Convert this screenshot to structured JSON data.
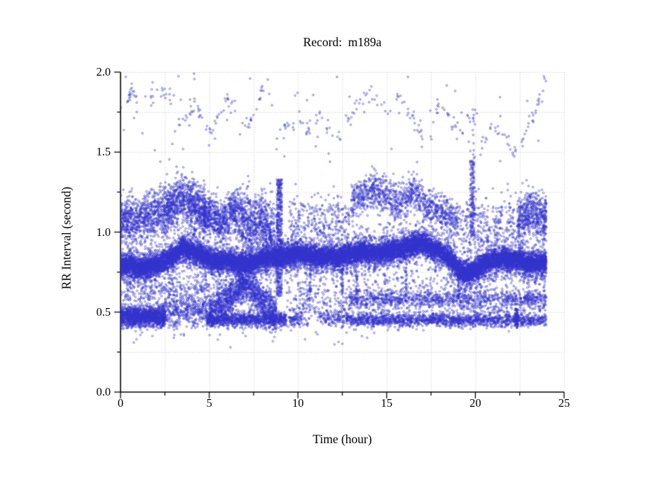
{
  "page": {
    "background_color": "#ffffff",
    "description": "Scatter plot of RR interval versus time for ECG record m189a"
  },
  "chart_data": {
    "type": "scatter",
    "title": "Record:  m189a",
    "xlabel": "Time (hour)",
    "ylabel": "RR Interval (second)",
    "xlim": [
      0,
      25
    ],
    "ylim": [
      0.0,
      2.0
    ],
    "x_major_ticks": [
      0,
      5,
      10,
      15,
      20,
      25
    ],
    "x_major_labels": [
      "0",
      "5",
      "10",
      "15",
      "20",
      "25"
    ],
    "x_minor_ticks": [
      2.5,
      7.5,
      12.5,
      17.5,
      22.5
    ],
    "y_major_ticks": [
      0.0,
      0.5,
      1.0,
      1.5,
      2.0
    ],
    "y_major_labels": [
      "0.0",
      "0.5",
      "1.0",
      "1.5",
      "2.0"
    ],
    "y_minor_ticks": [
      0.25,
      0.75,
      1.25,
      1.75
    ],
    "grid": {
      "style": "dotted",
      "color": "#b5b5b5",
      "at": "all major and minor ticks"
    },
    "axis_color": "#000000",
    "marker": {
      "shape": "open-circle",
      "color": "#3232cd",
      "radius_px": 1.25
    },
    "seed": 20189,
    "data_end_hour": 24,
    "centerlines": {
      "main": [
        [
          0,
          0.78
        ],
        [
          0.5,
          0.8
        ],
        [
          1,
          0.77
        ],
        [
          1.5,
          0.79
        ],
        [
          2,
          0.79
        ],
        [
          2.5,
          0.82
        ],
        [
          3,
          0.85
        ],
        [
          3.5,
          0.9
        ],
        [
          4,
          0.88
        ],
        [
          4.5,
          0.86
        ],
        [
          5,
          0.83
        ],
        [
          5.5,
          0.81
        ],
        [
          6,
          0.82
        ],
        [
          6.5,
          0.81
        ],
        [
          7,
          0.8
        ],
        [
          7.5,
          0.81
        ],
        [
          8,
          0.83
        ],
        [
          8.5,
          0.84
        ],
        [
          9,
          0.85
        ],
        [
          9.5,
          0.85
        ],
        [
          10,
          0.87
        ],
        [
          10.5,
          0.86
        ],
        [
          11,
          0.85
        ],
        [
          11.5,
          0.85
        ],
        [
          12,
          0.84
        ],
        [
          12.5,
          0.85
        ],
        [
          13,
          0.86
        ],
        [
          13.5,
          0.88
        ],
        [
          14,
          0.87
        ],
        [
          14.5,
          0.87
        ],
        [
          15,
          0.88
        ],
        [
          15.5,
          0.89
        ],
        [
          16,
          0.9
        ],
        [
          16.5,
          0.92
        ],
        [
          17,
          0.93
        ],
        [
          17.5,
          0.9
        ],
        [
          18,
          0.88
        ],
        [
          18.5,
          0.84
        ],
        [
          19,
          0.77
        ],
        [
          19.5,
          0.74
        ],
        [
          20,
          0.76
        ],
        [
          20.5,
          0.8
        ],
        [
          21,
          0.83
        ],
        [
          21.5,
          0.83
        ],
        [
          22,
          0.82
        ],
        [
          22.5,
          0.83
        ],
        [
          23,
          0.8
        ],
        [
          23.5,
          0.81
        ],
        [
          24,
          0.8
        ]
      ]
    },
    "series": [
      {
        "name": "main-band-core",
        "t": [
          0,
          24
        ],
        "count": 13000,
        "spread": 0.032,
        "center": "main"
      },
      {
        "name": "main-band-mid",
        "t": [
          0,
          24
        ],
        "count": 3000,
        "spread": 0.052,
        "center": "main"
      },
      {
        "name": "main-band-fringe",
        "t": [
          0,
          24
        ],
        "count": 2200,
        "spread": 0.085,
        "center": "main"
      },
      {
        "name": "low-floor-early",
        "t": [
          0,
          2.5
        ],
        "count": 1400,
        "spread": 0.032,
        "center": 0.47
      },
      {
        "name": "low-early-b",
        "t": [
          2.5,
          4.9
        ],
        "count": 380,
        "spread": 0.05,
        "center": 0.5
      },
      {
        "name": "mid-scatter-early",
        "t": [
          0,
          5
        ],
        "count": 420,
        "spread": 0.07,
        "center": 0.63
      },
      {
        "name": "low-pyramid",
        "t": [
          5,
          8.8
        ],
        "count": 1500,
        "spread": 0.055,
        "center": [
          [
            5,
            0.5
          ],
          [
            5.7,
            0.55
          ],
          [
            6.3,
            0.61
          ],
          [
            7,
            0.68
          ],
          [
            7.5,
            0.62
          ],
          [
            8.1,
            0.55
          ],
          [
            8.8,
            0.48
          ]
        ]
      },
      {
        "name": "low-floor-night",
        "t": [
          4.9,
          9.35
        ],
        "count": 1000,
        "spread": 0.022,
        "center": 0.455
      },
      {
        "name": "vstreak-h9",
        "t": [
          8.8,
          9.1
        ],
        "count": 420,
        "y": [
          0.6,
          1.33
        ]
      },
      {
        "name": "low-sparse-midday",
        "t": [
          9.35,
          13
        ],
        "count": 280,
        "spread": 0.08,
        "center": 0.55
      },
      {
        "name": "low-floor-h95",
        "t": [
          9.5,
          10.3
        ],
        "count": 70,
        "spread": 0.025,
        "center": 0.46
      },
      {
        "name": "low-streak-h11",
        "t": [
          11.2,
          12.9
        ],
        "count": 120,
        "spread": 0.02,
        "center": 0.465
      },
      {
        "name": "streak-058",
        "t": [
          12.9,
          24
        ],
        "count": 950,
        "spread": 0.025,
        "center": 0.585
      },
      {
        "name": "streak-045",
        "t": [
          12.9,
          24
        ],
        "count": 1500,
        "spread": 0.02,
        "center": 0.45
      },
      {
        "name": "low-scatter-pm1",
        "t": [
          13,
          24
        ],
        "count": 350,
        "spread": 0.04,
        "center": 0.52
      },
      {
        "name": "low-scatter-pm2",
        "t": [
          13,
          24
        ],
        "count": 220,
        "spread": 0.05,
        "center": 0.66
      },
      {
        "name": "vtick-h223",
        "t": [
          22.25,
          22.42
        ],
        "count": 90,
        "y": [
          0.4,
          0.52
        ]
      },
      {
        "name": "upper-early",
        "t": [
          0,
          2.4
        ],
        "count": 750,
        "spread": 0.07,
        "center": [
          [
            0,
            1.08
          ],
          [
            0.8,
            1.07
          ],
          [
            1.6,
            1.1
          ],
          [
            2.4,
            1.12
          ]
        ]
      },
      {
        "name": "upper-h25-48",
        "t": [
          2.4,
          4.8
        ],
        "count": 1000,
        "spread": 0.075,
        "center": [
          [
            2.4,
            1.12
          ],
          [
            3,
            1.18
          ],
          [
            3.4,
            1.22
          ],
          [
            3.8,
            1.18
          ],
          [
            4.2,
            1.15
          ],
          [
            4.8,
            1.12
          ]
        ]
      },
      {
        "name": "upper-h48-65",
        "t": [
          4.7,
          6.5
        ],
        "count": 650,
        "spread": 0.065,
        "center": [
          [
            4.7,
            1.1
          ],
          [
            5.2,
            1.12
          ],
          [
            5.6,
            1.05
          ],
          [
            6,
            1.1
          ],
          [
            6.5,
            1.12
          ]
        ]
      },
      {
        "name": "upper-h65-87",
        "t": [
          6.5,
          8.7
        ],
        "count": 800,
        "spread": 0.09,
        "center": [
          [
            6.5,
            1.1
          ],
          [
            7,
            1.08
          ],
          [
            7.4,
            1.04
          ],
          [
            7.9,
            1.08
          ],
          [
            8.3,
            1.03
          ],
          [
            8.7,
            0.98
          ]
        ]
      },
      {
        "name": "upper-sparse-midday",
        "t": [
          9.5,
          12.9
        ],
        "count": 280,
        "spread": 0.08,
        "center": 1.08
      },
      {
        "name": "upper-pm",
        "t": [
          13,
          19
        ],
        "count": 1100,
        "spread": 0.055,
        "center": [
          [
            13,
            1.18
          ],
          [
            13.6,
            1.24
          ],
          [
            14.3,
            1.27
          ],
          [
            15,
            1.22
          ],
          [
            15.7,
            1.17
          ],
          [
            16.5,
            1.26
          ],
          [
            17.2,
            1.17
          ],
          [
            18,
            1.12
          ],
          [
            19,
            1.07
          ]
        ]
      },
      {
        "name": "upper-h19-22",
        "t": [
          19,
          22.3
        ],
        "count": 300,
        "spread": 0.09,
        "center": 1.04
      },
      {
        "name": "vstreak-h198",
        "t": [
          19.7,
          19.95
        ],
        "count": 160,
        "y": [
          0.95,
          1.45
        ]
      },
      {
        "name": "upper-h224",
        "t": [
          22.35,
          24
        ],
        "count": 550,
        "spread": 0.075,
        "center": [
          [
            22.35,
            1.05
          ],
          [
            23,
            1.12
          ],
          [
            23.5,
            1.1
          ],
          [
            24,
            1.08
          ]
        ]
      },
      {
        "name": "top-arc-1",
        "t": [
          0.1,
          1
        ],
        "count": 22,
        "spread": 0.03,
        "center": [
          [
            0.1,
            1.55
          ],
          [
            0.35,
            1.78
          ],
          [
            0.6,
            1.9
          ],
          [
            1,
            1.82
          ]
        ]
      },
      {
        "name": "top-arc-2",
        "t": [
          1.4,
          2.9
        ],
        "count": 20,
        "spread": 0.03,
        "center": [
          [
            1.4,
            1.82
          ],
          [
            2.1,
            1.9
          ],
          [
            2.9,
            1.84
          ]
        ]
      },
      {
        "name": "top-arc-3",
        "t": [
          2.9,
          4.9
        ],
        "count": 26,
        "spread": 0.03,
        "center": [
          [
            2.9,
            1.62
          ],
          [
            3.5,
            1.7
          ],
          [
            4.2,
            1.79
          ],
          [
            4.9,
            1.66
          ]
        ]
      },
      {
        "name": "top-arc-4",
        "t": [
          5,
          6.5
        ],
        "count": 22,
        "spread": 0.03,
        "center": [
          [
            5,
            1.6
          ],
          [
            5.6,
            1.74
          ],
          [
            6.1,
            1.85
          ],
          [
            6.5,
            1.78
          ]
        ]
      },
      {
        "name": "top-arc-5",
        "t": [
          6.6,
          8.4
        ],
        "count": 22,
        "spread": 0.03,
        "center": [
          [
            6.6,
            1.6
          ],
          [
            7.2,
            1.68
          ],
          [
            7.9,
            1.88
          ],
          [
            8.4,
            1.83
          ]
        ]
      },
      {
        "name": "top-arc-6",
        "t": [
          8.7,
          12.4
        ],
        "count": 40,
        "spread": 0.03,
        "center": [
          [
            8.7,
            1.56
          ],
          [
            9.3,
            1.65
          ],
          [
            10,
            1.69
          ],
          [
            10.6,
            1.62
          ],
          [
            11.2,
            1.71
          ],
          [
            11.8,
            1.66
          ],
          [
            12.4,
            1.6
          ]
        ]
      },
      {
        "name": "top-arc-7",
        "t": [
          12.6,
          15.3
        ],
        "count": 30,
        "spread": 0.03,
        "center": [
          [
            12.6,
            1.7
          ],
          [
            13.3,
            1.78
          ],
          [
            14,
            1.86
          ],
          [
            14.7,
            1.8
          ],
          [
            15.3,
            1.74
          ]
        ]
      },
      {
        "name": "top-arc-8",
        "t": [
          15.5,
          17.2
        ],
        "count": 24,
        "spread": 0.03,
        "center": [
          [
            15.5,
            1.86
          ],
          [
            16,
            1.8
          ],
          [
            16.6,
            1.7
          ],
          [
            17.2,
            1.58
          ]
        ]
      },
      {
        "name": "top-arc-9",
        "t": [
          17.4,
          19.3
        ],
        "count": 24,
        "spread": 0.03,
        "center": [
          [
            17.4,
            1.74
          ],
          [
            18,
            1.8
          ],
          [
            18.7,
            1.7
          ],
          [
            19.3,
            1.62
          ]
        ]
      },
      {
        "name": "top-vcluster-h198",
        "t": [
          19.55,
          20
        ],
        "count": 20,
        "y": [
          1.45,
          1.78
        ]
      },
      {
        "name": "top-arc-11",
        "t": [
          20.2,
          22.3
        ],
        "count": 28,
        "spread": 0.03,
        "center": [
          [
            20.2,
            1.55
          ],
          [
            21,
            1.66
          ],
          [
            21.7,
            1.6
          ],
          [
            22.3,
            1.48
          ]
        ]
      },
      {
        "name": "top-arc-12",
        "t": [
          22.6,
          24
        ],
        "count": 24,
        "spread": 0.03,
        "center": [
          [
            22.6,
            1.55
          ],
          [
            23.2,
            1.7
          ],
          [
            23.7,
            1.86
          ],
          [
            24,
            1.94
          ]
        ]
      },
      {
        "name": "top-uniform-sparse",
        "t": [
          0,
          24
        ],
        "count": 55,
        "y": [
          1.42,
          2.0
        ]
      },
      {
        "name": "spike-h107",
        "t": [
          10.65,
          10.75
        ],
        "count": 30,
        "y": [
          0.62,
          0.78
        ]
      },
      {
        "name": "spike-h125",
        "t": [
          12.45,
          12.55
        ],
        "count": 30,
        "y": [
          0.6,
          0.78
        ]
      },
      {
        "name": "spike-h133",
        "t": [
          13.25,
          13.35
        ],
        "count": 35,
        "y": [
          0.55,
          0.8
        ]
      },
      {
        "name": "spike-h161",
        "t": [
          16.05,
          16.15
        ],
        "count": 30,
        "y": [
          0.6,
          0.8
        ]
      },
      {
        "name": "spike-h190",
        "t": [
          19,
          19.1
        ],
        "count": 25,
        "y": [
          0.6,
          0.73
        ]
      },
      {
        "name": "outlier-points",
        "pts": [
          [
            0.75,
            0.31
          ],
          [
            0.9,
            0.33
          ],
          [
            1.8,
            0.35
          ],
          [
            3.4,
            0.36
          ],
          [
            6.2,
            0.28
          ],
          [
            6.9,
            0.37
          ],
          [
            7.05,
            0.35
          ],
          [
            10.4,
            0.33
          ],
          [
            13.6,
            0.35
          ],
          [
            13.9,
            0.34
          ],
          [
            14.3,
            0.37
          ],
          [
            0.3,
            1.97
          ],
          [
            7.3,
            1.96
          ],
          [
            12.2,
            1.97
          ],
          [
            16.2,
            1.97
          ],
          [
            23.9,
            1.96
          ]
        ]
      }
    ]
  }
}
